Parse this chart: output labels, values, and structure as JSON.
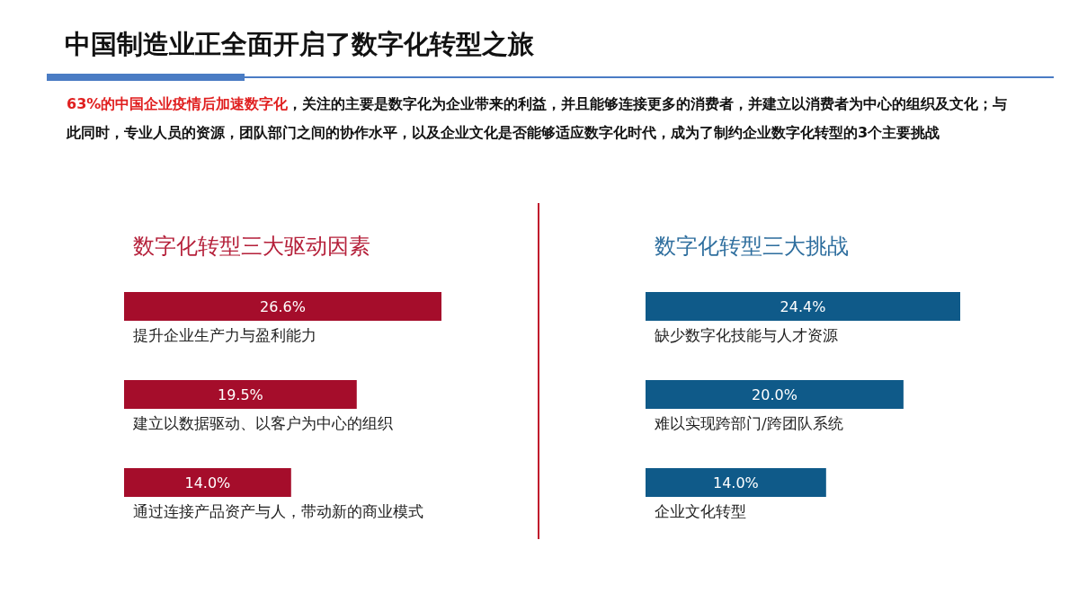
{
  "chart_data": [
    {
      "type": "bar",
      "orientation": "horizontal",
      "title": "数字化转型三大驱动因素",
      "categories": [
        "提升企业生产力与盈利能力",
        "建立以数据驱动、以客户为中心的组织",
        "通过连接产品资产与人，带动新的商业模式"
      ],
      "values": [
        26.6,
        19.5,
        14.0
      ],
      "value_labels": [
        "26.6%",
        "19.5%",
        "14.0%"
      ],
      "color": "#a50d2b",
      "annotations": [
        "中国制造业正全面开启了数字化转型之旅",
        "63%的中国企业疫情后加速数字化",
        "，关注的主要是数字化为企业带来的利益，并且能够连接更多的消费者，并建立以消费者为中心的组织及文化；与此同时，专业人员的资源，团队部门之间的协作水平，以及企业文化是否能够适应数字化时代，成为了制约企业数字化转型的3个主要挑战"
      ]
    },
    {
      "type": "bar",
      "orientation": "horizontal",
      "title": "数字化转型三大挑战",
      "categories": [
        "缺少数字化技能与人才资源",
        "难以实现跨部门/跨团队系统",
        "企业文化转型"
      ],
      "values": [
        24.4,
        20.0,
        14.0
      ],
      "value_labels": [
        "24.4%",
        "20.0%",
        "14.0%"
      ],
      "color": "#0f5a89"
    }
  ]
}
